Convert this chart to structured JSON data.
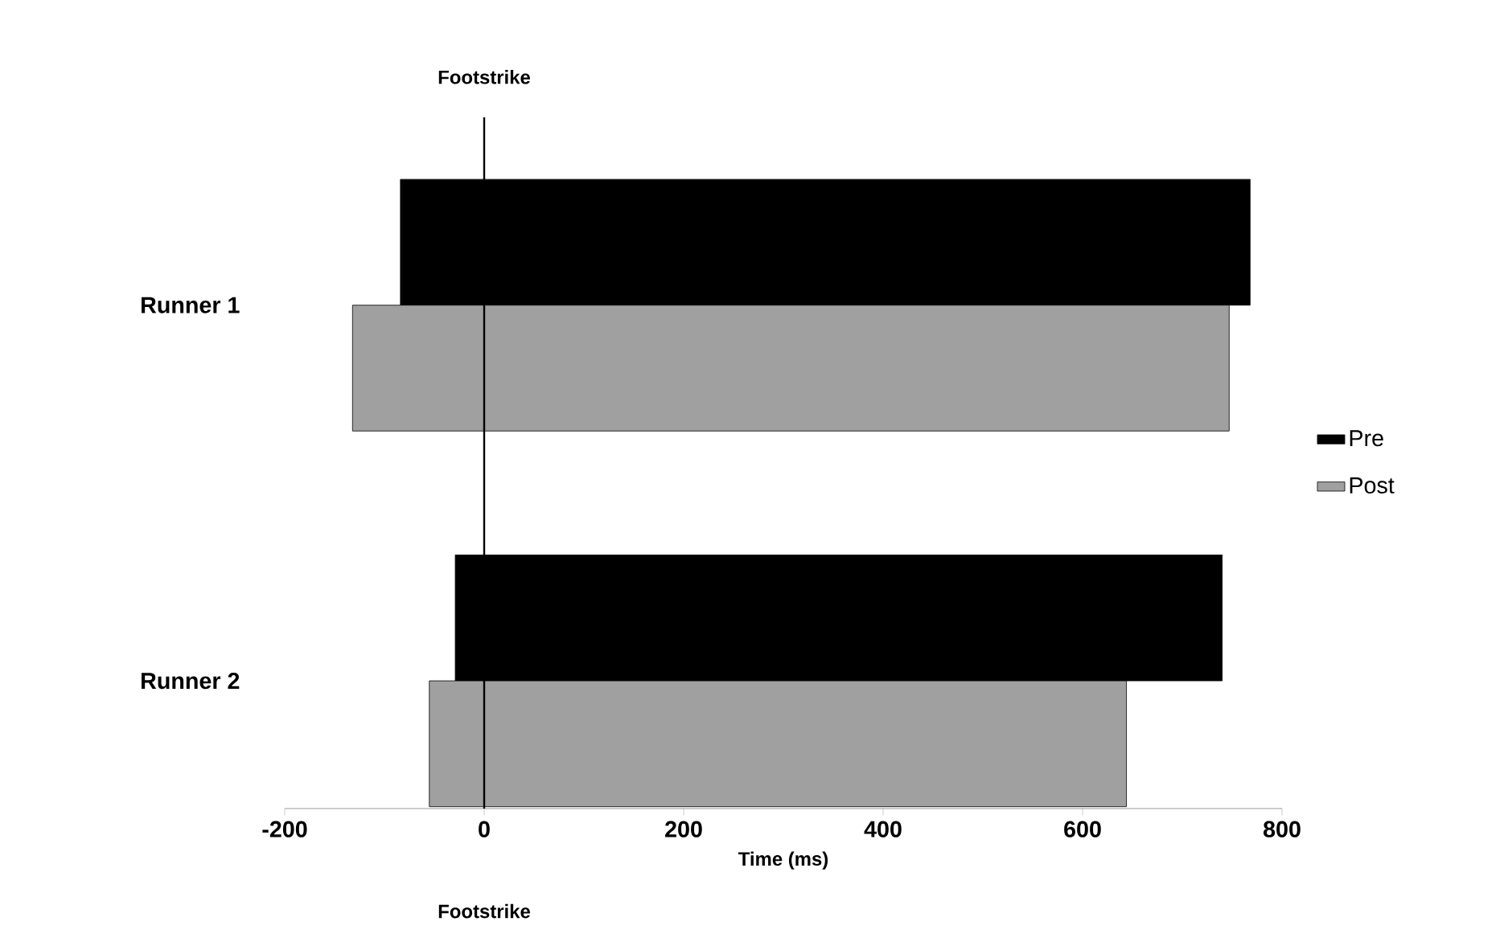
{
  "chart_data": {
    "type": "bar",
    "orientation": "horizontal",
    "xlabel": "Time (ms)",
    "categories": [
      "Runner 1",
      "Runner 2"
    ],
    "series": [
      {
        "name": "Pre",
        "color": "#000000",
        "values": [
          852,
          769
        ],
        "base": [
          -84,
          -29
        ]
      },
      {
        "name": "Post",
        "color": "#a0a0a0",
        "values": [
          879,
          699
        ],
        "base": [
          -132,
          -55
        ]
      }
    ],
    "xlim": [
      -200,
      800
    ],
    "xticks": [
      -200,
      0,
      200,
      400,
      600,
      800
    ],
    "ref_lines": [
      {
        "axis": "x",
        "value": 0,
        "label": "Footstrike",
        "color": "#000000"
      }
    ],
    "annotations": [
      "Footstrike"
    ],
    "legend": "right",
    "grid": false
  }
}
